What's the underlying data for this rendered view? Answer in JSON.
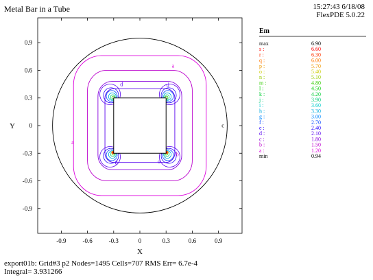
{
  "header": {
    "title": "Metal Bar in a Tube",
    "time": "15:27:43 6/18/08",
    "software": "FlexPDE 5.0.22"
  },
  "footer": {
    "line1": "export01b:  Grid#3  p2  Nodes=1495 Cells=707 RMS Err= 6.7e-4",
    "line2": "Integral=  3.931266"
  },
  "chart_data": {
    "type": "contour",
    "title": "Metal Bar in a Tube",
    "xlabel": "X",
    "ylabel": "Y",
    "xlim": [
      -1.17,
      1.17
    ],
    "ylim": [
      -1.17,
      1.17
    ],
    "x_ticks": [
      -0.9,
      -0.6,
      -0.3,
      0,
      0.3,
      0.6,
      0.9
    ],
    "y_ticks": [
      0.9,
      0.6,
      0.3,
      0,
      -0.3,
      -0.6,
      -0.9
    ],
    "x_tick_labels": [
      "-0.9",
      "-0.6",
      "-0.3",
      "0",
      "0.3",
      "0.6",
      "0.9"
    ],
    "y_tick_labels": [
      "0.9",
      "0.6",
      "0.3",
      "0",
      "-0.3",
      "-0.6",
      "-0.9"
    ],
    "variable": "Em",
    "max_label": "max",
    "max": "6.90",
    "min_label": "min",
    "min": "0.94",
    "levels": [
      {
        "label": "s :",
        "value": "6.60",
        "color": "#ff0000"
      },
      {
        "label": "r :",
        "value": "6.30",
        "color": "#ff3300"
      },
      {
        "label": "q :",
        "value": "6.00",
        "color": "#ff7700"
      },
      {
        "label": "p :",
        "value": "5.70",
        "color": "#ee9900"
      },
      {
        "label": "o :",
        "value": "5.40",
        "color": "#cccc00"
      },
      {
        "label": "n :",
        "value": "5.10",
        "color": "#99cc00"
      },
      {
        "label": "m :",
        "value": "4.80",
        "color": "#33cc00"
      },
      {
        "label": "l :",
        "value": "4.50",
        "color": "#00cc00"
      },
      {
        "label": "k :",
        "value": "4.20",
        "color": "#00cc33"
      },
      {
        "label": "j :",
        "value": "3.90",
        "color": "#00cc77"
      },
      {
        "label": "i :",
        "value": "3.60",
        "color": "#00cccc"
      },
      {
        "label": "h :",
        "value": "3.30",
        "color": "#00aadd"
      },
      {
        "label": "g :",
        "value": "3.00",
        "color": "#0088ff"
      },
      {
        "label": "f :",
        "value": "2.70",
        "color": "#0044ff"
      },
      {
        "label": "e :",
        "value": "2.40",
        "color": "#2200ff"
      },
      {
        "label": "d :",
        "value": "2.10",
        "color": "#5500ee"
      },
      {
        "label": "c :",
        "value": "1.80",
        "color": "#8800dd"
      },
      {
        "label": "b :",
        "value": "1.50",
        "color": "#bb00cc"
      },
      {
        "label": "a :",
        "value": "1.20",
        "color": "#dd00dd"
      }
    ],
    "tube_radius": 1.0,
    "bar_half_width": 0.3,
    "contours": [
      {
        "level": "a",
        "half_width": 0.76,
        "rounding": 0.32,
        "color": "#dd00dd"
      },
      {
        "level": "b",
        "half_width": 0.6,
        "rounding": 0.22,
        "color": "#bb00cc"
      },
      {
        "level": "c",
        "half_width": 0.48,
        "rounding": 0.16,
        "color": "#8800dd"
      },
      {
        "level": "d",
        "half_width": 0.4,
        "rounding": 0.1,
        "color": "#5500ee"
      }
    ],
    "corners": [
      [
        -0.3,
        0.3
      ],
      [
        0.3,
        0.3
      ],
      [
        -0.3,
        -0.3
      ],
      [
        0.3,
        -0.3
      ]
    ],
    "hot_spot_level_labels": [
      "e",
      "d",
      "c"
    ],
    "contour_labels": [
      {
        "text": "a",
        "x": -0.77,
        "y": -0.2,
        "color": "#dd00dd"
      },
      {
        "text": "a",
        "x": 0.38,
        "y": 0.63,
        "color": "#dd00dd"
      },
      {
        "text": "b",
        "x": 0.43,
        "y": -0.33,
        "color": "#bb00cc"
      },
      {
        "text": "c",
        "x": 0.95,
        "y": -0.02,
        "color": "#000000"
      },
      {
        "text": "d",
        "x": -0.21,
        "y": 0.43,
        "color": "#5500ee"
      },
      {
        "text": "d",
        "x": 0.32,
        "y": 0.42,
        "color": "#5500ee"
      },
      {
        "text": "d",
        "x": -0.27,
        "y": -0.42,
        "color": "#5500ee"
      },
      {
        "text": "d",
        "x": 0.22,
        "y": -0.41,
        "color": "#5500ee"
      }
    ]
  }
}
